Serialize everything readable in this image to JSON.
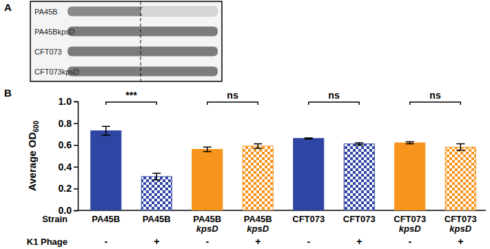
{
  "chart_data": {
    "type": "bar",
    "categories": [
      "PA45B",
      "PA45B",
      "PA45B kpsD",
      "PA45B kpsD",
      "CFT073",
      "CFT073",
      "CFT073 kpsD",
      "CFT073 kpsD"
    ],
    "x_label": "Strain",
    "phage_label": "K1 Phage",
    "phage": [
      "-",
      "+",
      "-",
      "+",
      "-",
      "+",
      "-",
      "+"
    ],
    "values": [
      0.73,
      0.31,
      0.56,
      0.59,
      0.66,
      0.61,
      0.62,
      0.58
    ],
    "errors": [
      0.04,
      0.03,
      0.02,
      0.02,
      0.005,
      0.01,
      0.01,
      0.03
    ],
    "colors": [
      "#2e45a3",
      "#2e45a3",
      "#f7941d",
      "#f7941d",
      "#2e45a3",
      "#2e45a3",
      "#f7941d",
      "#f7941d"
    ],
    "y_label": "Average OD",
    "y_label_subscript": "600",
    "ylim": [
      0,
      1
    ],
    "yticks": [
      {
        "value": 0,
        "label": "0.0"
      },
      {
        "value": 0.2,
        "label": "0.2"
      },
      {
        "value": 0.4,
        "label": "0.4"
      },
      {
        "value": 0.6,
        "label": "0.6"
      },
      {
        "value": 0.8,
        "label": "0.8"
      },
      {
        "value": 1,
        "label": "1.0"
      }
    ],
    "significance": [
      "***",
      "ns",
      "ns",
      "ns"
    ]
  },
  "panel_a": {
    "label": "A",
    "rows": [
      "PA45B",
      "PA45BkpsD",
      "CFT073",
      "CFT073kpsD"
    ]
  },
  "panel_b": {
    "label": "B"
  }
}
